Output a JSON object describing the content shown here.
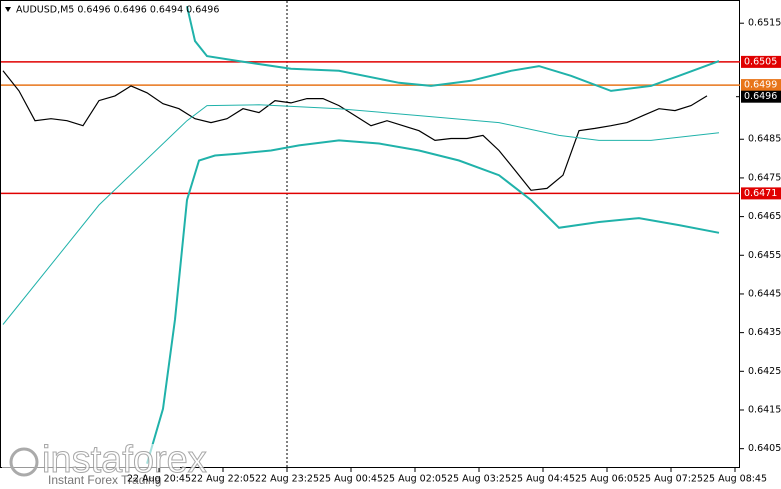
{
  "chart_data": {
    "type": "line",
    "title": "AUDUSD,M5  0.6496 0.6496 0.6494 0.6496",
    "watermark": [
      "instaforex",
      "Instant Forex Trading"
    ],
    "xlim": [
      -0.75,
      184.25
    ],
    "ylim": [
      0.64,
      0.6521
    ],
    "yticks": [
      0.6515,
      0.6485,
      0.6475,
      0.6465,
      0.6455,
      0.6445,
      0.6435,
      0.6425,
      0.6415,
      0.6405
    ],
    "xticks": [
      {
        "value": 39,
        "label": "22 Aug 20:45"
      },
      {
        "value": 55,
        "label": "22 Aug 22:05"
      },
      {
        "value": 71,
        "label": "22 Aug 23:25"
      },
      {
        "value": 87,
        "label": "25 Aug 00:45"
      },
      {
        "value": 103,
        "label": "25 Aug 02:05"
      },
      {
        "value": 119,
        "label": "25 Aug 03:25"
      },
      {
        "value": 135,
        "label": "25 Aug 04:45"
      },
      {
        "value": 151,
        "label": "25 Aug 06:05"
      },
      {
        "value": 167,
        "label": "25 Aug 07:25"
      },
      {
        "value": 183,
        "label": "25 Aug 08:45"
      }
    ],
    "levels": [
      {
        "value": 0.6505,
        "color": "#e00000",
        "line": true
      },
      {
        "value": 0.6499,
        "color": "#e8751a",
        "line": true
      },
      {
        "value": 0.6496,
        "color": "#000000",
        "line": false
      },
      {
        "value": 0.6471,
        "color": "#e00000",
        "line": true
      }
    ],
    "series": [
      {
        "color": "#000000",
        "width": 1.2,
        "x": [
          0,
          4,
          8,
          12,
          16,
          20,
          24,
          28,
          32,
          36,
          40,
          44,
          48,
          52,
          56,
          60,
          64,
          68,
          72,
          76,
          80,
          84,
          88,
          92,
          96,
          100,
          104,
          108,
          112,
          116,
          120,
          124,
          128,
          132,
          136,
          140,
          144,
          148,
          152,
          156,
          160,
          164,
          168,
          172,
          176
        ],
        "values": [
          0.65027,
          0.64975,
          0.64898,
          0.64903,
          0.64898,
          0.64885,
          0.6495,
          0.64962,
          0.64988,
          0.6497,
          0.64942,
          0.64929,
          0.64903,
          0.64893,
          0.64903,
          0.64929,
          0.64919,
          0.6495,
          0.64944,
          0.64955,
          0.64955,
          0.64937,
          0.64911,
          0.64885,
          0.64898,
          0.64885,
          0.64872,
          0.64847,
          0.64852,
          0.64852,
          0.6486,
          0.64821,
          0.6477,
          0.64718,
          0.64723,
          0.64757,
          0.64872,
          0.64878,
          0.64885,
          0.64893,
          0.64911,
          0.64929,
          0.64924,
          0.64937,
          0.64962
        ]
      },
      {
        "color": "#20b2aa",
        "width": 2,
        "x": [
          46,
          48,
          51,
          59,
          72,
          84,
          99,
          107,
          117,
          127,
          134,
          142,
          152,
          162,
          169,
          179
        ],
        "values": [
          0.65194,
          0.65104,
          0.65065,
          0.65052,
          0.65032,
          0.65027,
          0.64996,
          0.64988,
          0.65001,
          0.65027,
          0.65039,
          0.65014,
          0.64975,
          0.64988,
          0.65014,
          0.65052
        ]
      },
      {
        "color": "#20b2aa",
        "width": 1,
        "x": [
          0,
          24,
          46,
          51,
          64,
          84,
          104,
          124,
          139,
          149,
          162,
          179
        ],
        "values": [
          0.64371,
          0.6468,
          0.64898,
          0.64937,
          0.64939,
          0.64929,
          0.64911,
          0.64893,
          0.6486,
          0.64847,
          0.64847,
          0.64867
        ]
      },
      {
        "color": "#20b2aa",
        "width": 2,
        "x": [
          36,
          40,
          43,
          46,
          49,
          53,
          59,
          67,
          74,
          84,
          94,
          104,
          114,
          124,
          132,
          139,
          149,
          159,
          169,
          179
        ],
        "values": [
          0.64011,
          0.64153,
          0.64384,
          0.64693,
          0.64795,
          0.64808,
          0.64813,
          0.64821,
          0.64834,
          0.64847,
          0.64839,
          0.64821,
          0.64795,
          0.64757,
          0.64693,
          0.64621,
          0.64636,
          0.64646,
          0.64628,
          0.64608
        ]
      }
    ]
  }
}
